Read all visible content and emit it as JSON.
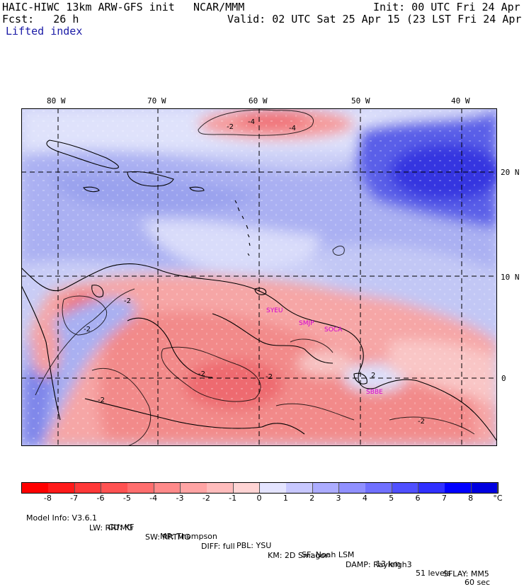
{
  "header": {
    "model": "HAIC-HIWC 13km ARW-GFS init",
    "org": "NCAR/MMM",
    "init": "Init: 00 UTC Fri 24 Apr 15",
    "fcst": "Fcst:   26 h",
    "valid": "Valid: 02 UTC Sat 25 Apr 15 (23 LST Fri 24 Apr 15)",
    "field": "Lifted index"
  },
  "map": {
    "lon_labels": [
      "80 W",
      "70 W",
      "60 W",
      "50 W",
      "40 W"
    ],
    "lat_labels": [
      "20 N",
      "10 N",
      "0"
    ],
    "stations": [
      "SYEU",
      "SMJP",
      "SOCA",
      "SBBE"
    ],
    "contour_labels": [
      "-2",
      "-4",
      "-4",
      "-2",
      "-2",
      "-2",
      "-2",
      "-2",
      "2",
      "-2"
    ],
    "colors": {
      "neg_strong": "#ee4050",
      "neg_mid": "#f59090",
      "neg_light": "#fbd0d0",
      "pos_light": "#dde0fb",
      "pos_mid": "#a8b0f0",
      "pos_strong": "#3c3ce8",
      "land_line": "#000000"
    }
  },
  "colorbar": {
    "values": [
      "-8",
      "-7",
      "-6",
      "-5",
      "-4",
      "-3",
      "-2",
      "-1",
      "0",
      "1",
      "2",
      "3",
      "4",
      "5",
      "6",
      "7",
      "8"
    ],
    "unit": "°C",
    "colors": [
      "#ff1a1a",
      "#ff3838",
      "#ff5252",
      "#ff6e6e",
      "#ff8a8a",
      "#ffa4a4",
      "#ffbcbc",
      "#ffd4d4",
      "#ffffff",
      "#e4e4ff",
      "#c8c8ff",
      "#acacff",
      "#9090ff",
      "#7070ff",
      "#5050ff",
      "#3030ff",
      "#0000ff"
    ]
  },
  "model_info": {
    "line1": [
      "Model Info: V3.6.1",
      "CU: KF",
      "MP: Thompson",
      "PBL: YSU",
      "SF: Noah LSM",
      "13 km",
      "51 levels",
      "60 sec"
    ],
    "line2": [
      "LW: RRTMG",
      "SW: RRTMG",
      "DIFF: full",
      "KM: 2D Smagor",
      "DAMP: Rayleigh3",
      "SFLAY: MM5"
    ]
  }
}
